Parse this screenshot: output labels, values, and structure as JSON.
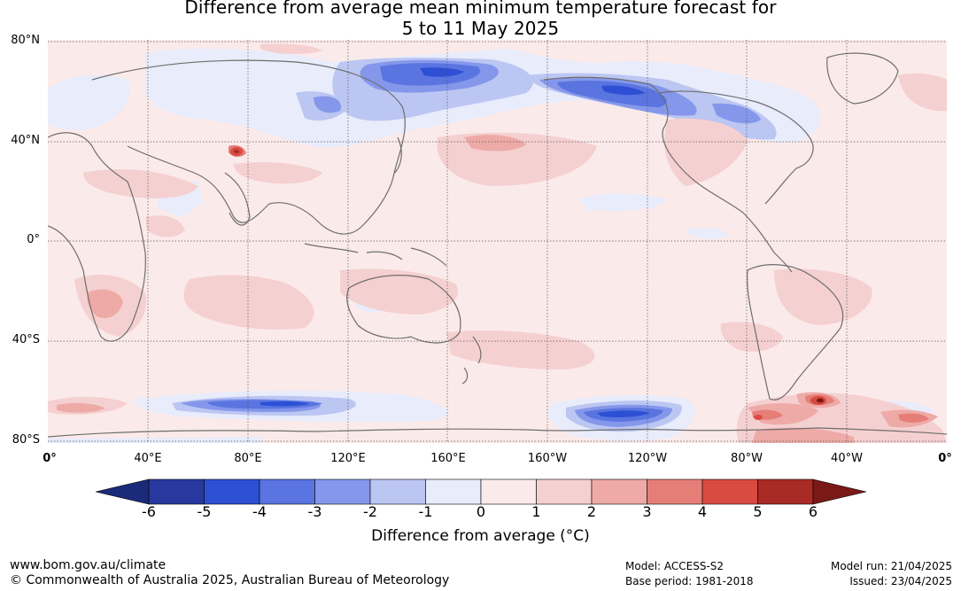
{
  "title_line1": "Difference from average mean minimum temperature forecast for",
  "title_line2": "5 to 11 May 2025",
  "lat_labels": [
    "80°N",
    "40°N",
    "0°",
    "40°S",
    "80°S"
  ],
  "lon_labels": [
    "0°",
    "40°E",
    "80°E",
    "120°E",
    "160°E",
    "160°W",
    "120°W",
    "80°W",
    "40°W",
    "0°"
  ],
  "colorbar": {
    "ticks": [
      "-6",
      "-5",
      "-4",
      "-3",
      "-2",
      "-1",
      "0",
      "1",
      "2",
      "3",
      "4",
      "5",
      "6"
    ],
    "colors": [
      "#27399e",
      "#2d4fd4",
      "#5a74e0",
      "#8497ea",
      "#bcc6f2",
      "#e8ecfb",
      "#fbeaea",
      "#f5d0d0",
      "#eeaaa7",
      "#e67e78",
      "#d94a41",
      "#aa2a25"
    ],
    "under_color": "#1b2a7a",
    "over_color": "#7a1a16",
    "label": "Difference from average (°C)"
  },
  "footer": {
    "url": "www.bom.gov.au/climate",
    "copyright": "© Commonwealth of Australia 2025, Australian Bureau of Meteorology",
    "model": "Model: ACCESS-S2",
    "base_period": "Base period: 1981-2018",
    "model_run": "Model run: 21/04/2025",
    "issued": "Issued: 23/04/2025"
  }
}
